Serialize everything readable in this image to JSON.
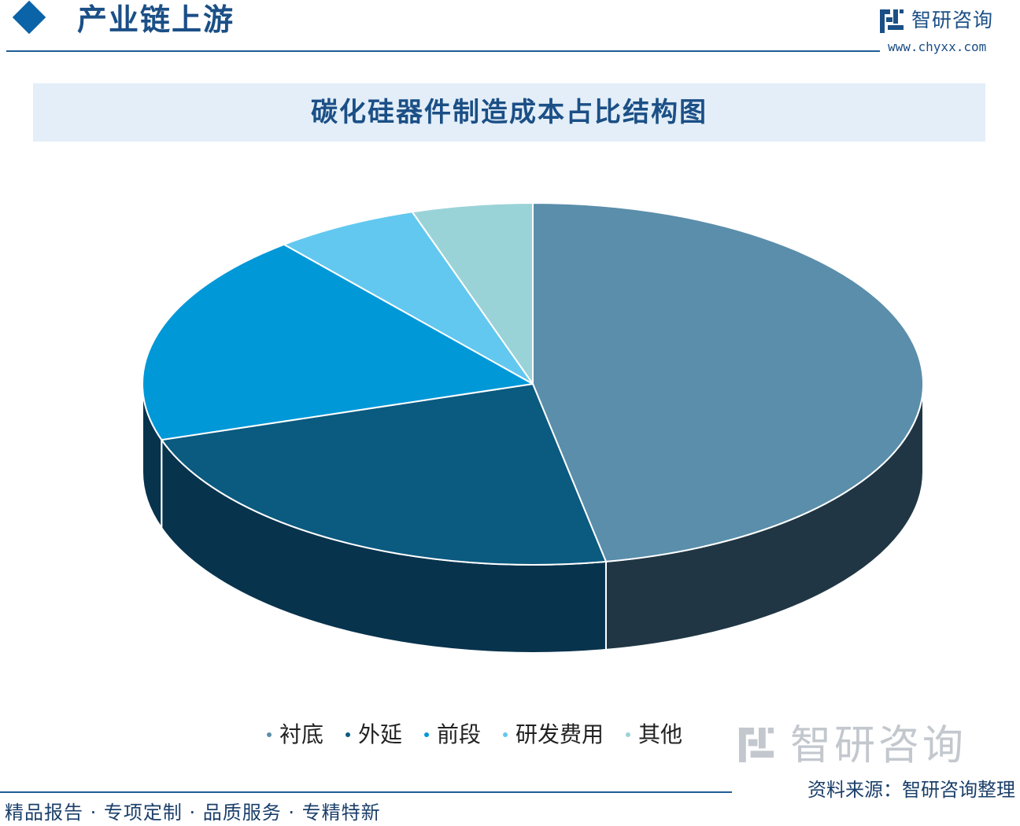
{
  "header": {
    "section_title": "产业链上游",
    "brand_name": "智研咨询",
    "brand_url": "www.chyxx.com"
  },
  "chart_data": {
    "type": "pie",
    "title": "碳化硅器件制造成本占比结构图",
    "categories": [
      "衬底",
      "外延",
      "前段",
      "研发费用",
      "其他"
    ],
    "values": [
      47,
      23,
      19,
      6,
      5
    ],
    "unit": "%",
    "style": "3d",
    "legend_position": "bottom",
    "colors": {
      "top": [
        "#5a8eab",
        "#0b5a80",
        "#0198d8",
        "#62c8f0",
        "#9ad3d7"
      ],
      "side": [
        "#203644",
        "#08334d"
      ],
      "legend": [
        "#5a8eab",
        "#0b5a80",
        "#0198d8",
        "#62c8f0",
        "#9ad3d7"
      ]
    }
  },
  "watermark": {
    "name": "智研咨询"
  },
  "footer": {
    "source": "资料来源：智研咨询整理",
    "slogan": "精品报告 · 专项定制 · 品质服务 · 专精特新"
  }
}
